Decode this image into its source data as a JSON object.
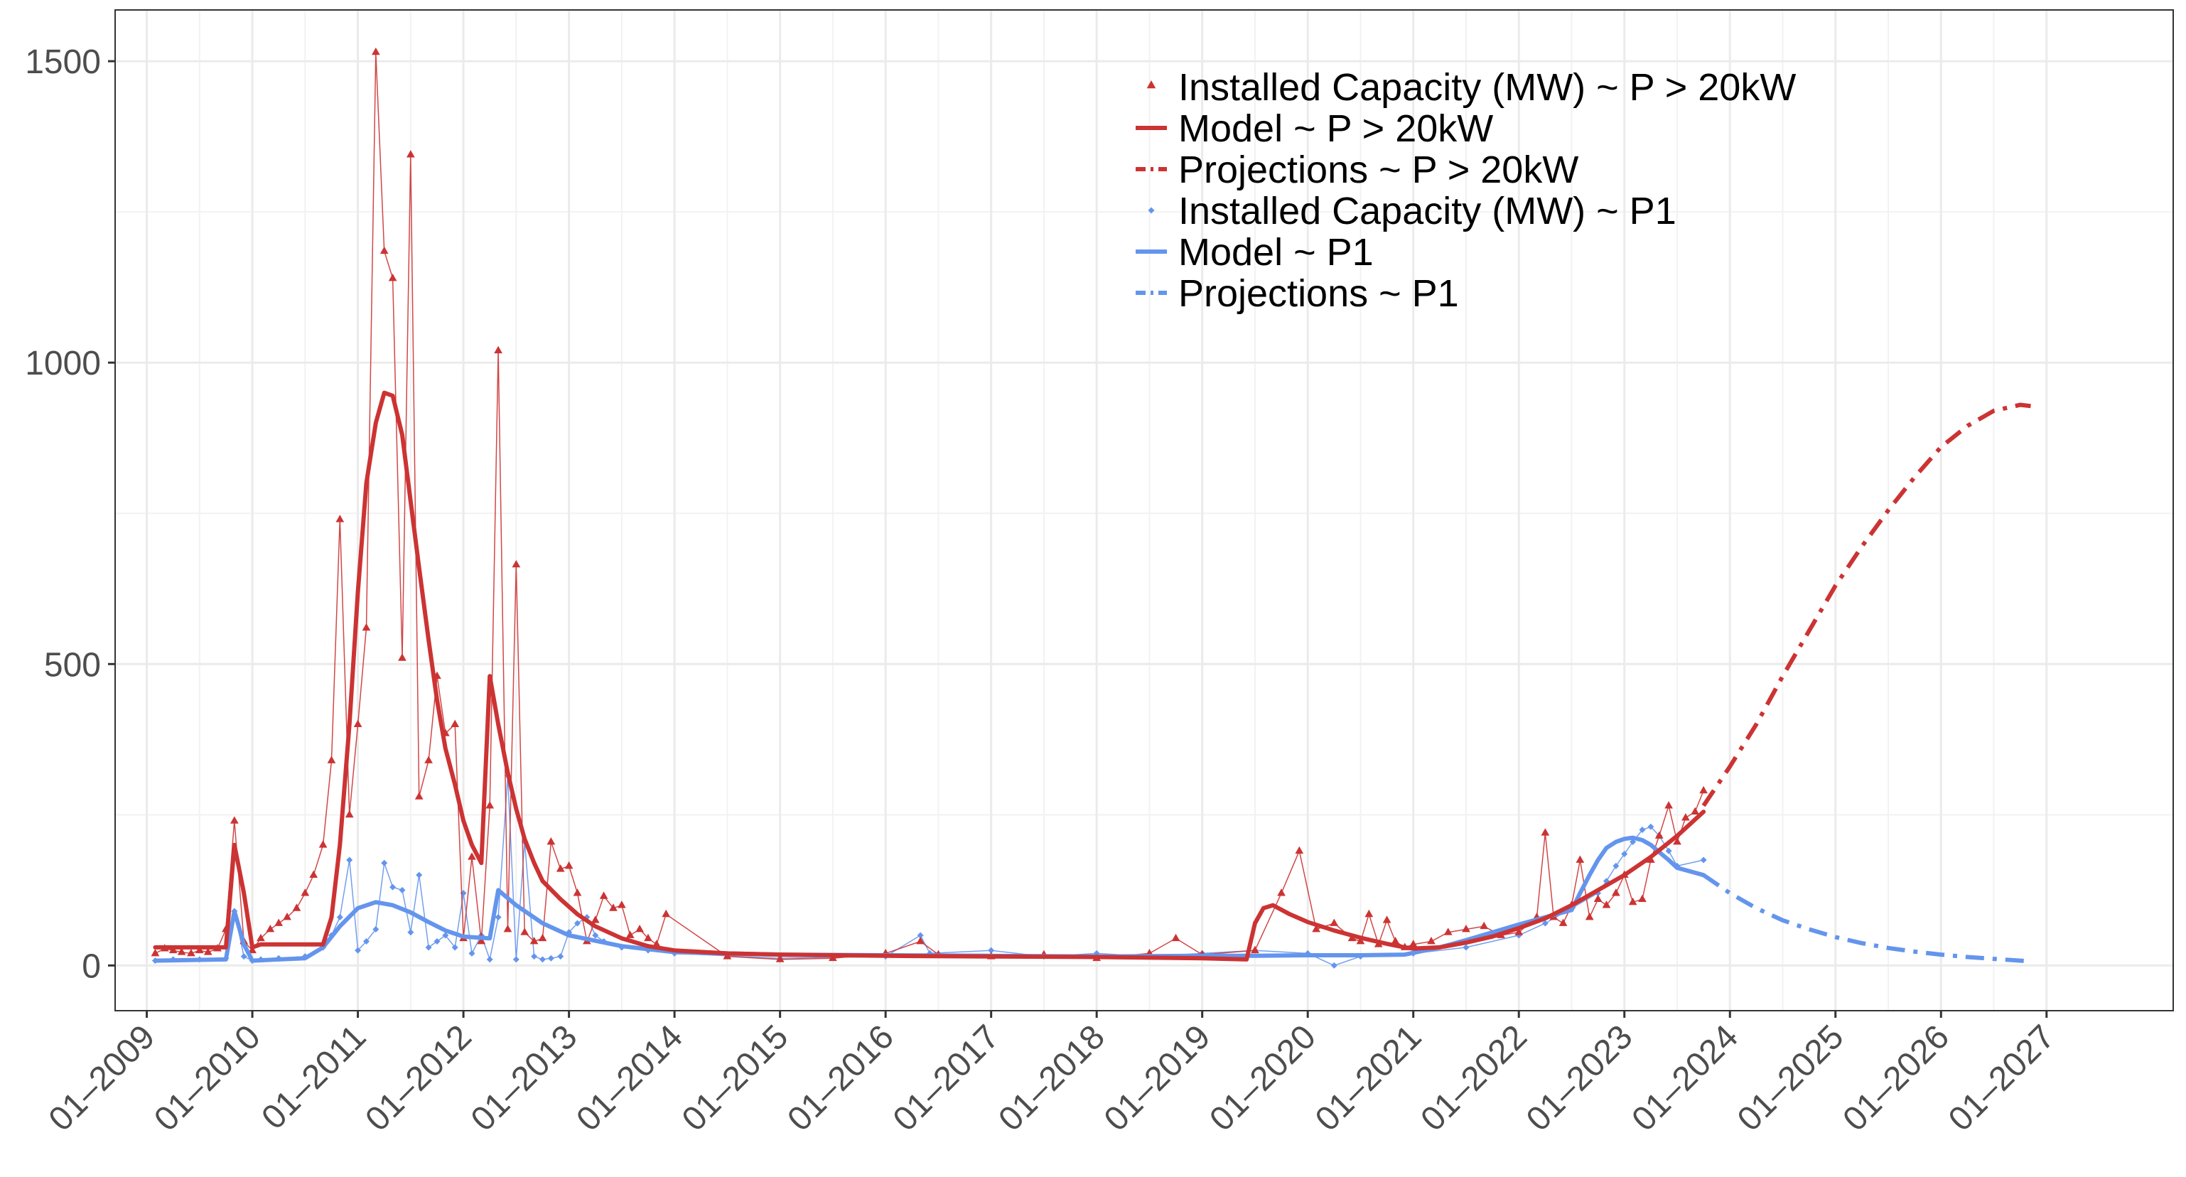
{
  "chart_data": {
    "type": "line",
    "title": "",
    "xlabel": "",
    "ylabel": "",
    "xlim": [
      2008.7,
      2028.2
    ],
    "ylim": [
      -75,
      1585
    ],
    "y_ticks": [
      0,
      500,
      1000,
      1500
    ],
    "y_tick_labels": [
      "0",
      "500",
      "1000",
      "1500"
    ],
    "x_ticks": [
      2009,
      2010,
      2011,
      2012,
      2013,
      2014,
      2015,
      2016,
      2017,
      2018,
      2019,
      2020,
      2021,
      2022,
      2023,
      2024,
      2025,
      2026,
      2027
    ],
    "x_tick_labels": [
      "01–2009",
      "01–2010",
      "01–2011",
      "01–2012",
      "01–2013",
      "01–2014",
      "01–2015",
      "01–2016",
      "01–2017",
      "01–2018",
      "01–2019",
      "01–2020",
      "01–2021",
      "01–2022",
      "01–2023",
      "01–2024",
      "01–2025",
      "01–2026",
      "01–2027"
    ],
    "grid": true,
    "legend_position": "top-right inside",
    "colors": {
      "red": "#cc3333",
      "blue": "#6495ed"
    },
    "series": [
      {
        "name": "Installed Capacity (MW) ~ P > 20kW",
        "style": "points-thin-line",
        "color": "#cc3333",
        "marker": "triangle",
        "x": [
          2009.08,
          2009.17,
          2009.25,
          2009.33,
          2009.42,
          2009.5,
          2009.58,
          2009.67,
          2009.75,
          2009.83,
          2009.92,
          2010.0,
          2010.08,
          2010.17,
          2010.25,
          2010.33,
          2010.42,
          2010.5,
          2010.58,
          2010.67,
          2010.75,
          2010.83,
          2010.92,
          2011.0,
          2011.08,
          2011.17,
          2011.25,
          2011.33,
          2011.42,
          2011.5,
          2011.58,
          2011.67,
          2011.75,
          2011.83,
          2011.92,
          2012.0,
          2012.08,
          2012.17,
          2012.25,
          2012.33,
          2012.42,
          2012.5,
          2012.58,
          2012.67,
          2012.75,
          2012.83,
          2012.92,
          2013.0,
          2013.08,
          2013.17,
          2013.25,
          2013.33,
          2013.42,
          2013.5,
          2013.58,
          2013.67,
          2013.75,
          2013.83,
          2013.92,
          2014.5,
          2015.0,
          2015.5,
          2016.0,
          2016.33,
          2016.5,
          2017.0,
          2017.5,
          2018.0,
          2018.5,
          2018.75,
          2019.0,
          2019.5,
          2019.75,
          2019.92,
          2020.08,
          2020.25,
          2020.42,
          2020.5,
          2020.58,
          2020.67,
          2020.75,
          2020.83,
          2020.92,
          2021.0,
          2021.17,
          2021.33,
          2021.5,
          2021.67,
          2021.83,
          2022.0,
          2022.17,
          2022.25,
          2022.33,
          2022.42,
          2022.5,
          2022.58,
          2022.67,
          2022.75,
          2022.83,
          2022.92,
          2023.0,
          2023.08,
          2023.17,
          2023.25,
          2023.33,
          2023.42,
          2023.5,
          2023.58,
          2023.67,
          2023.75
        ],
        "y": [
          20,
          28,
          25,
          22,
          20,
          25,
          22,
          28,
          60,
          240,
          40,
          25,
          45,
          60,
          70,
          80,
          95,
          120,
          150,
          200,
          340,
          740,
          250,
          400,
          560,
          1515,
          1185,
          1140,
          510,
          1345,
          280,
          340,
          480,
          385,
          400,
          45,
          180,
          40,
          265,
          1020,
          60,
          665,
          55,
          40,
          45,
          205,
          160,
          165,
          120,
          40,
          75,
          115,
          95,
          100,
          50,
          60,
          45,
          35,
          85,
          15,
          10,
          12,
          20,
          40,
          18,
          15,
          18,
          12,
          20,
          45,
          18,
          25,
          120,
          190,
          60,
          70,
          45,
          40,
          85,
          35,
          75,
          40,
          30,
          35,
          40,
          55,
          60,
          65,
          50,
          55,
          80,
          220,
          80,
          70,
          100,
          175,
          80,
          110,
          100,
          120,
          150,
          105,
          110,
          175,
          215,
          265,
          205,
          245,
          255,
          290
        ]
      },
      {
        "name": "Model ~ P > 20kW",
        "style": "solid",
        "color": "#cc3333",
        "x": [
          2009.08,
          2009.75,
          2009.83,
          2009.92,
          2010.0,
          2010.08,
          2010.67,
          2010.75,
          2010.83,
          2010.92,
          2011.0,
          2011.08,
          2011.17,
          2011.25,
          2011.33,
          2011.42,
          2011.5,
          2011.58,
          2011.67,
          2011.75,
          2011.83,
          2011.92,
          2012.0,
          2012.08,
          2012.17,
          2012.25,
          2012.33,
          2012.42,
          2012.5,
          2012.58,
          2012.67,
          2012.75,
          2012.92,
          2013.08,
          2013.25,
          2013.5,
          2013.75,
          2014.0,
          2014.5,
          2015.0,
          2016.0,
          2017.0,
          2018.0,
          2019.0,
          2019.42,
          2019.5,
          2019.58,
          2019.67,
          2019.83,
          2020.0,
          2020.25,
          2020.5,
          2020.75,
          2020.92,
          2021.0,
          2021.25,
          2021.5,
          2021.75,
          2022.0,
          2022.25,
          2022.5,
          2022.75,
          2023.0,
          2023.25,
          2023.5,
          2023.75
        ],
        "y": [
          30,
          30,
          200,
          120,
          30,
          35,
          35,
          80,
          200,
          400,
          620,
          800,
          900,
          950,
          945,
          880,
          770,
          660,
          540,
          440,
          360,
          300,
          240,
          200,
          170,
          480,
          400,
          320,
          260,
          210,
          170,
          140,
          110,
          85,
          65,
          45,
          32,
          25,
          20,
          18,
          16,
          15,
          14,
          12,
          10,
          70,
          95,
          100,
          85,
          72,
          58,
          46,
          36,
          30,
          28,
          30,
          38,
          48,
          62,
          78,
          100,
          125,
          150,
          180,
          215,
          255
        ]
      },
      {
        "name": "Projections ~  P > 20kW",
        "style": "dash-dot",
        "color": "#cc3333",
        "x": [
          2023.75,
          2024.0,
          2024.25,
          2024.5,
          2024.75,
          2025.0,
          2025.25,
          2025.5,
          2025.75,
          2026.0,
          2026.25,
          2026.5,
          2026.75,
          2026.85
        ],
        "y": [
          265,
          330,
          400,
          480,
          555,
          630,
          695,
          755,
          810,
          860,
          895,
          920,
          930,
          928
        ]
      },
      {
        "name": "Installed Capacity (MW) ~ P1",
        "style": "points-thin-line",
        "color": "#6495ed",
        "marker": "diamond",
        "x": [
          2009.08,
          2009.25,
          2009.5,
          2009.75,
          2009.83,
          2009.92,
          2010.0,
          2010.08,
          2010.25,
          2010.5,
          2010.67,
          2010.75,
          2010.83,
          2010.92,
          2011.0,
          2011.08,
          2011.17,
          2011.25,
          2011.33,
          2011.42,
          2011.5,
          2011.58,
          2011.67,
          2011.75,
          2011.83,
          2011.92,
          2012.0,
          2012.08,
          2012.17,
          2012.25,
          2012.33,
          2012.42,
          2012.5,
          2012.58,
          2012.67,
          2012.75,
          2012.83,
          2012.92,
          2013.0,
          2013.08,
          2013.17,
          2013.25,
          2013.33,
          2013.5,
          2013.75,
          2014.0,
          2015.0,
          2016.0,
          2016.33,
          2016.42,
          2017.0,
          2017.5,
          2018.0,
          2018.5,
          2019.0,
          2019.5,
          2020.0,
          2020.25,
          2020.5,
          2021.0,
          2021.5,
          2022.0,
          2022.25,
          2022.5,
          2022.75,
          2022.83,
          2022.92,
          2023.0,
          2023.08,
          2023.17,
          2023.25,
          2023.33,
          2023.42,
          2023.5,
          2023.75
        ],
        "y": [
          8,
          10,
          10,
          12,
          90,
          15,
          8,
          10,
          12,
          15,
          30,
          50,
          80,
          175,
          25,
          40,
          60,
          170,
          130,
          125,
          55,
          150,
          30,
          40,
          50,
          30,
          120,
          20,
          50,
          10,
          80,
          315,
          10,
          205,
          15,
          10,
          12,
          15,
          55,
          70,
          80,
          50,
          40,
          30,
          25,
          20,
          12,
          15,
          50,
          20,
          25,
          15,
          20,
          15,
          20,
          25,
          20,
          0,
          15,
          20,
          30,
          50,
          70,
          95,
          120,
          140,
          165,
          185,
          205,
          225,
          230,
          215,
          190,
          165,
          175
        ]
      },
      {
        "name": "Model ~ P1",
        "style": "solid",
        "color": "#6495ed",
        "x": [
          2009.08,
          2009.75,
          2009.83,
          2009.92,
          2010.0,
          2010.5,
          2010.67,
          2010.83,
          2011.0,
          2011.17,
          2011.33,
          2011.5,
          2011.67,
          2011.83,
          2012.0,
          2012.25,
          2012.33,
          2012.5,
          2012.75,
          2013.0,
          2013.5,
          2014.0,
          2015.0,
          2016.0,
          2017.0,
          2018.0,
          2019.0,
          2019.5,
          2020.0,
          2020.5,
          2020.92,
          2021.25,
          2021.5,
          2021.75,
          2022.0,
          2022.25,
          2022.5,
          2022.58,
          2022.67,
          2022.75,
          2022.83,
          2022.92,
          2023.0,
          2023.08,
          2023.17,
          2023.25,
          2023.33,
          2023.42,
          2023.5,
          2023.75
        ],
        "y": [
          8,
          10,
          90,
          35,
          8,
          12,
          30,
          65,
          95,
          105,
          100,
          88,
          72,
          58,
          48,
          45,
          125,
          100,
          70,
          50,
          32,
          22,
          18,
          17,
          16,
          15,
          16,
          16,
          17,
          17,
          18,
          30,
          42,
          55,
          68,
          80,
          92,
          120,
          150,
          175,
          195,
          205,
          210,
          212,
          208,
          200,
          188,
          175,
          162,
          150
        ]
      },
      {
        "name": "Projections ~ P1",
        "style": "dash-dot",
        "color": "#6495ed",
        "x": [
          2023.75,
          2024.0,
          2024.25,
          2024.5,
          2024.75,
          2025.0,
          2025.25,
          2025.5,
          2025.75,
          2026.0,
          2026.25,
          2026.5,
          2026.75,
          2026.85
        ],
        "y": [
          150,
          120,
          95,
          75,
          60,
          47,
          37,
          29,
          23,
          18,
          14,
          11,
          8,
          7
        ]
      }
    ],
    "legend": [
      {
        "label": "Installed Capacity (MW) ~ P > 20kW",
        "color": "#cc3333",
        "symbol": "triangle"
      },
      {
        "label": "Model ~ P > 20kW",
        "color": "#cc3333",
        "symbol": "solid"
      },
      {
        "label": "Projections ~  P > 20kW",
        "color": "#cc3333",
        "symbol": "dash-dot"
      },
      {
        "label": "Installed Capacity (MW) ~ P1",
        "color": "#6495ed",
        "symbol": "diamond"
      },
      {
        "label": "Model ~ P1",
        "color": "#6495ed",
        "symbol": "solid"
      },
      {
        "label": "Projections ~ P1",
        "color": "#6495ed",
        "symbol": "dash-dot"
      }
    ]
  }
}
